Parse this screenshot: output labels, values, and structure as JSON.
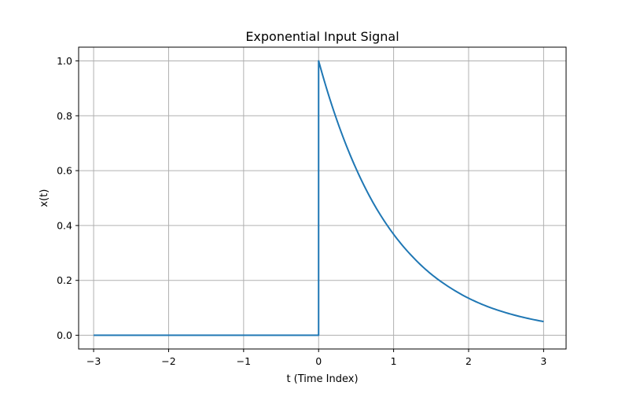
{
  "chart_data": {
    "type": "line",
    "title": "Exponential Input Signal",
    "xlabel": "t (Time Index)",
    "ylabel": "x(t)",
    "xlim": [
      -3.2,
      3.3
    ],
    "ylim": [
      -0.05,
      1.05
    ],
    "xticks": [
      -3,
      -2,
      -1,
      0,
      1,
      2,
      3
    ],
    "xtick_labels": [
      "−3",
      "−2",
      "−1",
      "0",
      "1",
      "2",
      "3"
    ],
    "yticks": [
      0.0,
      0.2,
      0.4,
      0.6,
      0.8,
      1.0
    ],
    "ytick_labels": [
      "0.0",
      "0.2",
      "0.4",
      "0.6",
      "0.8",
      "1.0"
    ],
    "grid": true,
    "series": [
      {
        "color": "#1f77b4",
        "x": [
          -3,
          -2,
          -1,
          0,
          0,
          0.25,
          0.5,
          0.75,
          1,
          1.25,
          1.5,
          1.75,
          2,
          2.25,
          2.5,
          2.75,
          3
        ],
        "y": [
          0,
          0,
          0,
          0,
          1.0,
          0.779,
          0.607,
          0.472,
          0.368,
          0.287,
          0.223,
          0.174,
          0.135,
          0.105,
          0.082,
          0.064,
          0.05
        ]
      }
    ]
  }
}
